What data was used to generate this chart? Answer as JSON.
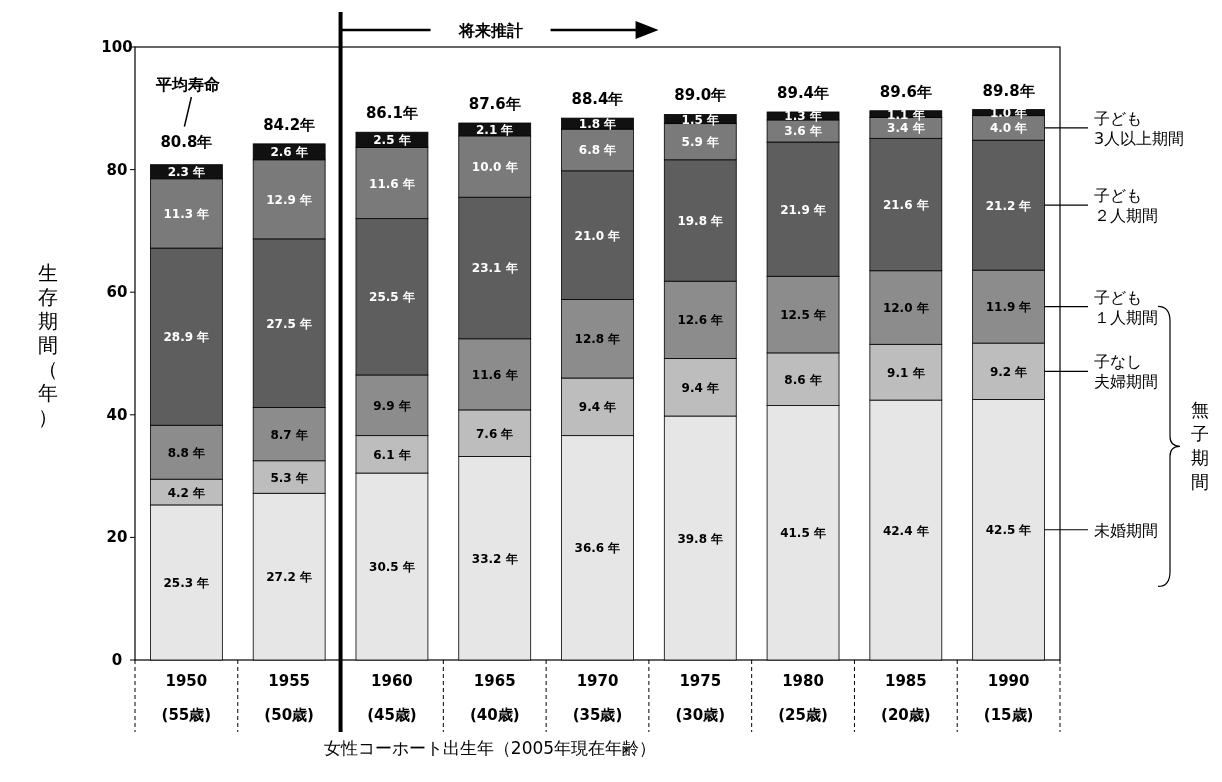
{
  "chart_data": {
    "type": "bar",
    "stacked": true,
    "categories": [
      "1950\n(55歳)",
      "1955\n(50歳)",
      "1960\n(45歳)",
      "1965\n(40歳)",
      "1970\n(35歳)",
      "1975\n(30歳)",
      "1980\n(25歳)",
      "1985\n(20歳)",
      "1990\n(15歳)"
    ],
    "series": [
      {
        "name": "未婚期間",
        "color": "#e6e6e6",
        "values": [
          25.3,
          27.2,
          30.5,
          33.2,
          36.6,
          39.8,
          41.5,
          42.4,
          42.5
        ],
        "value_labels": [
          "25.3 年",
          "27.2 年",
          "30.5 年",
          "33.2 年",
          "36.6 年",
          "39.8 年",
          "41.5 年",
          "42.4 年",
          "42.5 年"
        ]
      },
      {
        "name": "子なし夫婦期間",
        "color": "#bdbdbd",
        "values": [
          4.2,
          5.3,
          6.1,
          7.6,
          9.4,
          9.4,
          8.6,
          9.1,
          9.2
        ],
        "value_labels": [
          "4.2 年",
          "5.3 年",
          "6.1 年",
          "7.6 年",
          "9.4 年",
          "9.4 年",
          "8.6 年",
          "9.1 年",
          "9.2 年"
        ]
      },
      {
        "name": "子ども１人期間",
        "color": "#8c8c8c",
        "values": [
          8.8,
          8.7,
          9.9,
          11.6,
          12.8,
          12.6,
          12.5,
          12.0,
          11.9
        ],
        "value_labels": [
          "8.8 年",
          "8.7 年",
          "9.9 年",
          "11.6 年",
          "12.8 年",
          "12.6 年",
          "12.5 年",
          "12.0 年",
          "11.9 年"
        ]
      },
      {
        "name": "子ども２人期間",
        "color": "#5e5e5e",
        "values": [
          28.9,
          27.5,
          25.5,
          23.1,
          21.0,
          19.8,
          21.9,
          21.6,
          21.2
        ],
        "value_labels": [
          "28.9 年",
          "27.5 年",
          "25.5 年",
          "23.1 年",
          "21.0 年",
          "19.8 年",
          "21.9 年",
          "21.6 年",
          "21.2 年"
        ]
      },
      {
        "name": "子ども3人以上期間",
        "color": "#7a7a7a",
        "values": [
          11.3,
          12.9,
          11.6,
          10.0,
          6.8,
          5.9,
          3.6,
          3.4,
          4.0
        ],
        "value_labels": [
          "11.3 年",
          "12.9 年",
          "11.6 年",
          "10.0 年",
          "6.8 年",
          "5.9 年",
          "3.6 年",
          "3.4 年",
          "4.0 年"
        ]
      },
      {
        "color": "#111111",
        "values": [
          2.3,
          2.6,
          2.5,
          2.1,
          1.8,
          1.5,
          1.3,
          1.1,
          1.0
        ],
        "value_labels": [
          "2.3 年",
          "2.6 年",
          "2.5 年",
          "2.1 年",
          "1.8 年",
          "1.5 年",
          "1.3 年",
          "1.1 年",
          "1.0 年"
        ]
      }
    ],
    "totals": [
      "80.8年",
      "84.2年",
      "86.1年",
      "87.6年",
      "88.4年",
      "89.0年",
      "89.4年",
      "89.6年",
      "89.8年"
    ],
    "ylim": [
      0,
      100
    ],
    "yticks": [
      0,
      20,
      40,
      60,
      80,
      100
    ],
    "ylabel": "生存期間（年）",
    "xlabel": "女性コーホート出生年（2005年現在年齢）",
    "annotations": [
      "平均寿命",
      "将来推計",
      "無子期間"
    ],
    "legend": "right"
  }
}
